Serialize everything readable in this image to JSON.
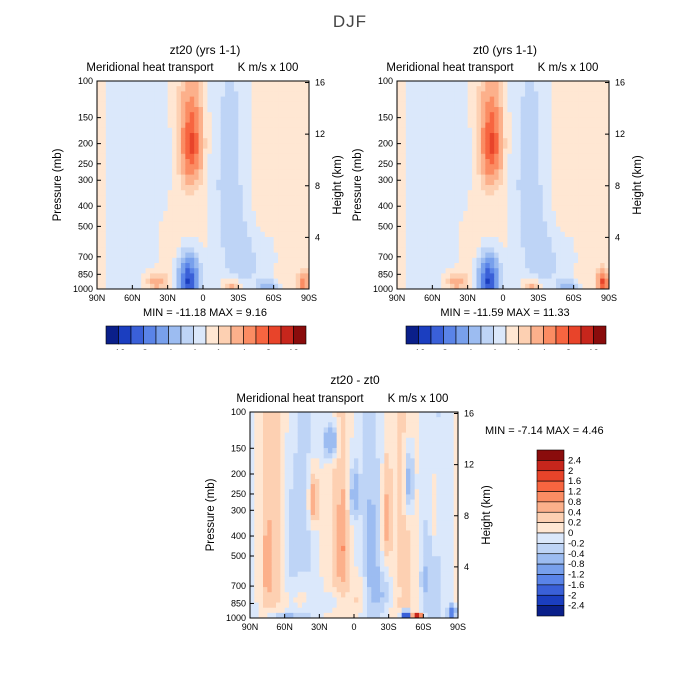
{
  "figure_title": "DJF",
  "colors": {
    "pos": [
      "#ffe7d3",
      "#fdd0b2",
      "#fcb08b",
      "#fb8c63",
      "#f76540",
      "#e8442a",
      "#c7261c",
      "#8a0c0c"
    ],
    "neg": [
      "#dbe8fb",
      "#bed4f6",
      "#9cbcf1",
      "#78a0ec",
      "#5a84e8",
      "#3a60d8",
      "#1b3ec0",
      "#0a1f8a"
    ]
  },
  "chart_data": [
    {
      "type": "heatmap",
      "title": "zt20 (yrs 1-1)",
      "subtitle": "Meridional heat transport",
      "units": "K m/s x 100",
      "xlabel": "",
      "ylabel": "Pressure (mb)",
      "y2label": "Height (km)",
      "xticks": [
        "90N",
        "60N",
        "30N",
        "0",
        "30S",
        "60S",
        "90S"
      ],
      "yticks": [
        "100",
        "150",
        "200",
        "250",
        "300",
        "400",
        "500",
        "700",
        "850",
        "1000"
      ],
      "y2ticks": [
        "16",
        "12",
        "8",
        "4"
      ],
      "min_max_text": "MIN = -11.18   MAX =   9.16",
      "min": -11.18,
      "max": 9.16,
      "colorbar": {
        "labels": [
          "-12",
          "-8",
          "-4",
          "-1",
          "1",
          "4",
          "8",
          "12"
        ]
      },
      "features": [
        {
          "lat": 10,
          "p": 200,
          "value": 8,
          "wlat": 8,
          "wp": 90
        },
        {
          "lat": 12,
          "p": 910,
          "value": -11,
          "wlat": 8,
          "wp": 210
        },
        {
          "lat": 40,
          "p": 920,
          "value": 3,
          "wlat": 9,
          "wp": 90
        },
        {
          "lat": -25,
          "p": 960,
          "value": 3,
          "wlat": 8,
          "wp": 60
        },
        {
          "lat": -55,
          "p": 960,
          "value": -3,
          "wlat": 8,
          "wp": 60
        },
        {
          "lat": -85,
          "p": 930,
          "value": 5,
          "wlat": 4,
          "wp": 100
        },
        {
          "lat": 35,
          "p": 250,
          "value": -1,
          "wlat": 9,
          "wp": 140
        },
        {
          "lat": -20,
          "p": 300,
          "value": -1,
          "wlat": 12,
          "wp": 280
        },
        {
          "lat": -48,
          "p": 300,
          "value": 1,
          "wlat": 9,
          "wp": 350
        },
        {
          "lat": -40,
          "p": 700,
          "value": -1,
          "wlat": 25,
          "wp": 250
        }
      ]
    },
    {
      "type": "heatmap",
      "title": "zt0 (yrs 1-1)",
      "subtitle": "Meridional heat transport",
      "units": "K m/s x 100",
      "xlabel": "",
      "ylabel": "Pressure (mb)",
      "y2label": "Height (km)",
      "xticks": [
        "90N",
        "60N",
        "30N",
        "0",
        "30S",
        "60S",
        "90S"
      ],
      "yticks": [
        "100",
        "150",
        "200",
        "250",
        "300",
        "400",
        "500",
        "700",
        "850",
        "1000"
      ],
      "y2ticks": [
        "16",
        "12",
        "8",
        "4"
      ],
      "min_max_text": "MIN = -11.59   MAX =  11.33",
      "min": -11.59,
      "max": 11.33,
      "colorbar": {
        "labels": [
          "-12",
          "-8",
          "-4",
          "-1",
          "1",
          "4",
          "8",
          "12"
        ]
      },
      "features": [
        {
          "lat": 10,
          "p": 200,
          "value": 8,
          "wlat": 8,
          "wp": 90
        },
        {
          "lat": 12,
          "p": 910,
          "value": -11,
          "wlat": 8,
          "wp": 210
        },
        {
          "lat": 40,
          "p": 920,
          "value": 3,
          "wlat": 9,
          "wp": 90
        },
        {
          "lat": -25,
          "p": 960,
          "value": 3,
          "wlat": 8,
          "wp": 60
        },
        {
          "lat": -55,
          "p": 960,
          "value": -3,
          "wlat": 8,
          "wp": 60
        },
        {
          "lat": -85,
          "p": 930,
          "value": 8,
          "wlat": 4,
          "wp": 110
        },
        {
          "lat": 35,
          "p": 250,
          "value": -1,
          "wlat": 9,
          "wp": 140
        },
        {
          "lat": -20,
          "p": 300,
          "value": -1,
          "wlat": 12,
          "wp": 280
        },
        {
          "lat": -48,
          "p": 300,
          "value": 1,
          "wlat": 9,
          "wp": 350
        },
        {
          "lat": -40,
          "p": 700,
          "value": -1,
          "wlat": 25,
          "wp": 250
        }
      ]
    },
    {
      "type": "heatmap",
      "title": "zt20 - zt0",
      "subtitle": "Meridional heat transport",
      "units": "K m/s x 100",
      "xlabel": "",
      "ylabel": "Pressure (mb)",
      "y2label": "Height (km)",
      "xticks": [
        "90N",
        "60N",
        "30N",
        "0",
        "30S",
        "60S",
        "90S"
      ],
      "yticks": [
        "100",
        "150",
        "200",
        "250",
        "300",
        "400",
        "500",
        "700",
        "850",
        "1000"
      ],
      "y2ticks": [
        "16",
        "12",
        "8",
        "4"
      ],
      "min_max_text": "MIN =   -7.14   MAX =    4.46",
      "min": -7.14,
      "max": 4.46,
      "colorbar": {
        "labels": [
          "2.4",
          "2",
          "1.6",
          "1.2",
          "0.8",
          "0.4",
          "0.2",
          "0",
          "-0.2",
          "-0.4",
          "-0.8",
          "-1.2",
          "-1.6",
          "-2",
          "-2.4"
        ]
      },
      "features": [
        {
          "lat": -55,
          "p": 985,
          "value": 2.6,
          "wlat": 4,
          "wp": 40
        },
        {
          "lat": -45,
          "p": 975,
          "value": -2.6,
          "wlat": 4,
          "wp": 50
        },
        {
          "lat": -85,
          "p": 940,
          "value": -1.6,
          "wlat": 3,
          "wp": 80
        },
        {
          "lat": 60,
          "p": 1000,
          "value": -1.5,
          "wlat": 12,
          "wp": 25
        },
        {
          "lat": 35,
          "p": 270,
          "value": 0.9,
          "wlat": 4,
          "wp": 80
        },
        {
          "lat": 20,
          "p": 140,
          "value": -1,
          "wlat": 6,
          "wp": 30
        },
        {
          "lat": 10,
          "p": 450,
          "value": 0.6,
          "wlat": 4,
          "wp": 200
        },
        {
          "lat": 0,
          "p": 250,
          "value": -0.6,
          "wlat": 4,
          "wp": 80
        },
        {
          "lat": -15,
          "p": 500,
          "value": -0.4,
          "wlat": 5,
          "wp": 250
        },
        {
          "lat": -28,
          "p": 350,
          "value": 0.5,
          "wlat": 4,
          "wp": 200
        },
        {
          "lat": -48,
          "p": 220,
          "value": -0.8,
          "wlat": 4,
          "wp": 80
        },
        {
          "lat": -70,
          "p": 300,
          "value": 0.4,
          "wlat": 4,
          "wp": 150
        },
        {
          "lat": 75,
          "p": 550,
          "value": 0.3,
          "wlat": 5,
          "wp": 300
        },
        {
          "lat": 55,
          "p": 450,
          "value": -0.3,
          "wlat": 6,
          "wp": 250
        },
        {
          "lat": 45,
          "p": 800,
          "value": 0.3,
          "wlat": 8,
          "wp": 150
        },
        {
          "lat": 20,
          "p": 850,
          "value": -0.3,
          "wlat": 10,
          "wp": 120
        },
        {
          "lat": -5,
          "p": 800,
          "value": 0.3,
          "wlat": 8,
          "wp": 200
        },
        {
          "lat": -25,
          "p": 750,
          "value": -0.3,
          "wlat": 10,
          "wp": 200
        },
        {
          "lat": -62,
          "p": 650,
          "value": -0.3,
          "wlat": 5,
          "wp": 250
        },
        {
          "lat": 70,
          "p": 950,
          "value": -0.2,
          "wlat": 12,
          "wp": 80
        }
      ]
    }
  ]
}
